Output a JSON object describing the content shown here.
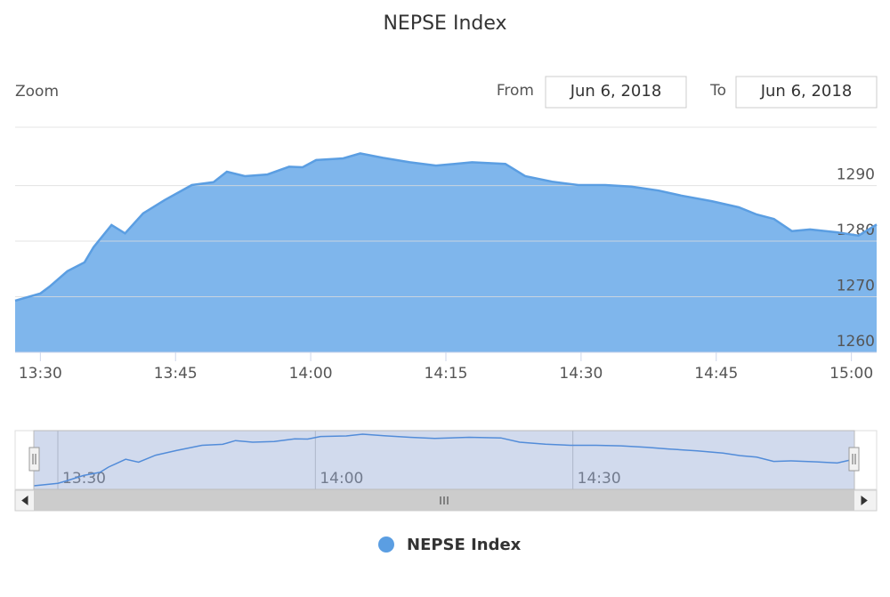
{
  "chart_data": {
    "type": "area",
    "title": "NEPSE Index",
    "range_selector": {
      "zoom_label": "Zoom",
      "from_label": "From",
      "from": "Jun 6, 2018",
      "to_label": "To",
      "to": "Jun 6, 2018"
    },
    "x": [
      807.2,
      810,
      811,
      813,
      814.9,
      815.9,
      817.9,
      819.4,
      821.4,
      823.8,
      826.8,
      829.2,
      830.7,
      832.7,
      835.2,
      837.6,
      839.1,
      840.6,
      843.6,
      845.5,
      848,
      851,
      853.9,
      857.9,
      861.6,
      863.8,
      866.8,
      869.7,
      872.7,
      875.6,
      878.6,
      881.1,
      884.5,
      887.5,
      889.5,
      891.4,
      893.4,
      895.4,
      898.4,
      900.8,
      902.8
    ],
    "series": [
      {
        "name": "NEPSE Index",
        "color": "#5b9ee2",
        "values": [
          1269.3,
          1270.6,
          1271.8,
          1274.6,
          1276.2,
          1278.9,
          1282.9,
          1281.4,
          1285,
          1287.4,
          1290.1,
          1290.6,
          1292.5,
          1291.7,
          1292,
          1293.4,
          1293.3,
          1294.6,
          1294.9,
          1295.8,
          1295,
          1294.2,
          1293.6,
          1294.2,
          1293.9,
          1291.7,
          1290.7,
          1290.1,
          1290.1,
          1289.8,
          1289.1,
          1288.2,
          1287.2,
          1286.1,
          1284.8,
          1284,
          1281.8,
          1282.1,
          1281.6,
          1281,
          1283
        ]
      }
    ],
    "xlim": [
      807.2,
      902.8
    ],
    "xticks": [
      {
        "value": 810,
        "label": "13:30"
      },
      {
        "value": 825,
        "label": "13:45"
      },
      {
        "value": 840,
        "label": "14:00"
      },
      {
        "value": 855,
        "label": "14:15"
      },
      {
        "value": 870,
        "label": "14:30"
      },
      {
        "value": 885,
        "label": "14:45"
      },
      {
        "value": 900,
        "label": "15:00"
      }
    ],
    "navigator_xticks": [
      {
        "value": 810,
        "label": "13:30"
      },
      {
        "value": 840,
        "label": "14:00"
      },
      {
        "value": 870,
        "label": "14:30"
      }
    ],
    "ylim": [
      1260,
      1300.5
    ],
    "yticks": [
      1260,
      1270,
      1280,
      1290
    ],
    "grid": true
  }
}
